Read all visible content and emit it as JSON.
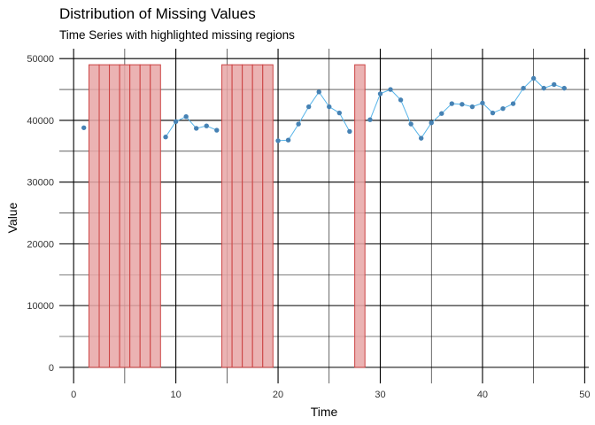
{
  "chart_data": {
    "type": "line",
    "title": "Distribution of Missing Values",
    "subtitle": "Time Series with highlighted missing regions",
    "xlabel": "Time",
    "ylabel": "Value",
    "xlim": [
      -1.4,
      50.4
    ],
    "ylim": [
      -2600,
      51600
    ],
    "x_ticks": [
      0,
      10,
      20,
      30,
      40,
      50
    ],
    "y_ticks": [
      0,
      10000,
      20000,
      30000,
      40000,
      50000
    ],
    "grid": true,
    "colors": {
      "line": "#56B4E9",
      "point": "#4682B4",
      "missing_fill": "#E8A6A6",
      "missing_stroke": "#CC4444",
      "grid": "#000000"
    },
    "missing_rect_top": 49000,
    "missing_x": [
      2,
      3,
      4,
      5,
      6,
      7,
      8,
      15,
      16,
      17,
      18,
      19,
      28
    ],
    "series": [
      {
        "x": [
          1,
          9,
          10,
          11,
          12,
          13,
          14,
          20,
          21,
          22,
          23,
          24,
          25,
          26,
          27,
          29,
          30,
          31,
          32,
          33,
          34,
          35,
          36,
          37,
          38,
          39,
          40,
          41,
          42,
          43,
          44,
          45,
          46,
          47,
          48
        ],
        "y": [
          38800,
          37300,
          39800,
          40600,
          38700,
          39100,
          38400,
          36700,
          36800,
          39400,
          42200,
          44600,
          42200,
          41200,
          38200,
          40100,
          44300,
          45000,
          43300,
          39400,
          37100,
          39600,
          41100,
          42700,
          42600,
          42200,
          42800,
          41200,
          41900,
          42700,
          45200,
          46800,
          45200,
          45800,
          45200
        ]
      }
    ]
  }
}
